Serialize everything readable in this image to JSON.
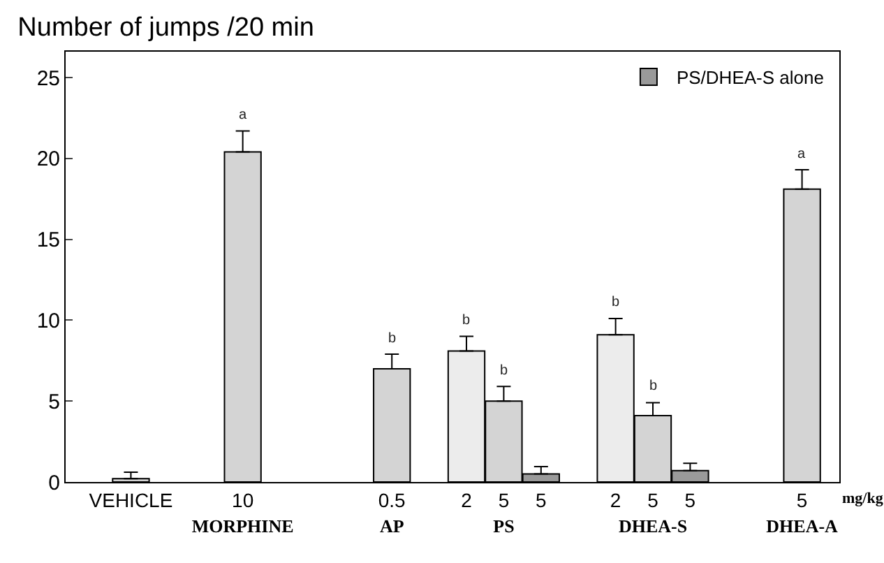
{
  "chart_data": {
    "type": "bar",
    "title": "Number of jumps /20 min",
    "categories": [
      "VEHICLE",
      null,
      null,
      "10\nMORPHINE",
      null,
      null,
      null,
      "0.5\nAP",
      null,
      "2",
      "5\nPS",
      "5",
      null,
      "2",
      "5\nDHEA-S",
      "5",
      null,
      null,
      "5\nDHEA-A"
    ],
    "series": [
      {
        "color": "#d4d4d4",
        "values": [
          0.2,
          null,
          null,
          20.4,
          null,
          null,
          null,
          7.0,
          null,
          null,
          5.0,
          null,
          null,
          null,
          4.1,
          null,
          null,
          null,
          18.1
        ],
        "errors": [
          [
            0.2,
            0.6
          ],
          null,
          null,
          [
            20.4,
            21.7
          ],
          null,
          null,
          null,
          [
            7.0,
            7.9
          ],
          null,
          null,
          [
            5.0,
            5.9
          ],
          null,
          null,
          null,
          [
            4.1,
            4.9
          ],
          null,
          null,
          null,
          [
            18.1,
            19.3
          ]
        ],
        "value_labels": [
          null,
          null,
          null,
          "a",
          null,
          null,
          null,
          "b",
          null,
          null,
          "b",
          null,
          null,
          null,
          "b",
          null,
          null,
          null,
          "a"
        ]
      },
      {
        "color": "#ececec",
        "values": [
          null,
          null,
          null,
          null,
          null,
          null,
          null,
          null,
          null,
          8.1,
          null,
          null,
          null,
          9.1,
          null,
          null,
          null,
          null,
          null
        ],
        "errors": [
          null,
          null,
          null,
          null,
          null,
          null,
          null,
          null,
          null,
          [
            8.1,
            9.0
          ],
          null,
          null,
          null,
          [
            9.1,
            10.1
          ],
          null,
          null,
          null,
          null,
          null
        ],
        "value_labels": [
          null,
          null,
          null,
          null,
          null,
          null,
          null,
          null,
          null,
          "b",
          null,
          null,
          null,
          "b",
          null,
          null,
          null,
          null,
          null
        ]
      },
      {
        "name": "PS/DHEA-S alone",
        "color": "#9a9a9a",
        "values": [
          null,
          null,
          null,
          null,
          null,
          null,
          null,
          null,
          null,
          null,
          null,
          0.5,
          null,
          null,
          null,
          0.7,
          null,
          null,
          null
        ],
        "errors": [
          null,
          null,
          null,
          null,
          null,
          null,
          null,
          null,
          null,
          null,
          null,
          [
            0.5,
            0.95
          ],
          null,
          null,
          null,
          [
            0.7,
            1.15
          ],
          null,
          null,
          null
        ]
      }
    ],
    "ylim": [
      0,
      26.6
    ],
    "yticks": [
      0,
      5,
      10,
      15,
      20,
      25
    ],
    "legend": "top right",
    "annotations": [
      "mg/kg"
    ]
  }
}
